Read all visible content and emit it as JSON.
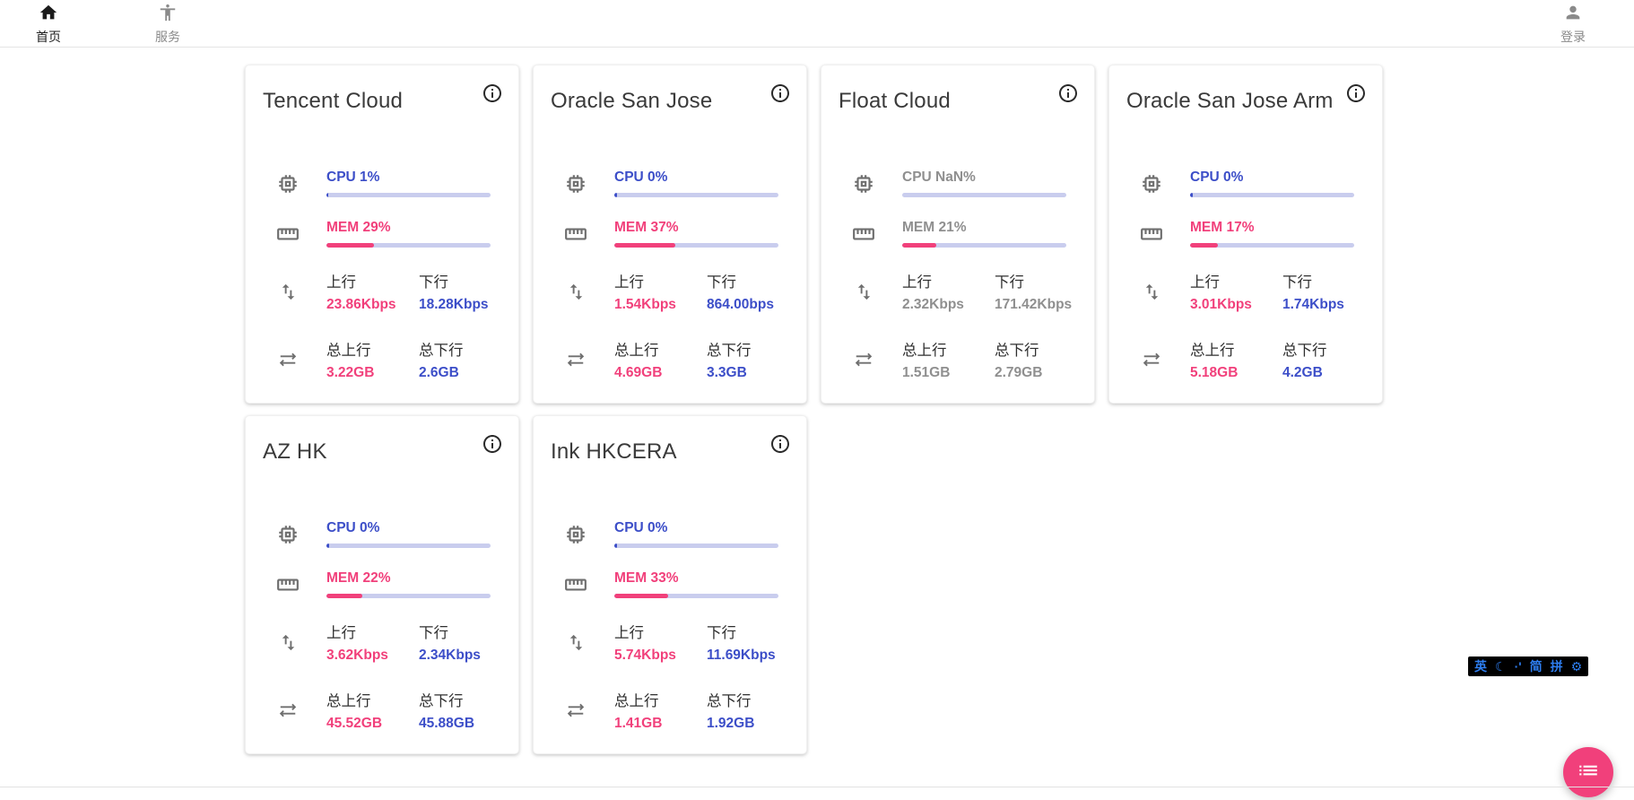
{
  "nav": {
    "home": {
      "label": "首页"
    },
    "services": {
      "label": "服务"
    },
    "login": {
      "label": "登录"
    }
  },
  "labels": {
    "cpu": "CPU",
    "mem": "MEM",
    "up": "上行",
    "down": "下行",
    "total_up": "总上行",
    "total_down": "总下行"
  },
  "colors": {
    "accent_pink": "#F1407B",
    "accent_blue": "#3C4EC8",
    "bar_track": "#C9CDEE",
    "offline_gray": "#8F8F8F"
  },
  "servers": [
    {
      "name": "Tencent Cloud",
      "cpu_text": "1%",
      "cpu_pct": 1,
      "mem_text": "29%",
      "mem_pct": 29,
      "up": "23.86Kbps",
      "down": "18.28Kbps",
      "total_up": "3.22GB",
      "total_down": "2.6GB",
      "online": true
    },
    {
      "name": "Oracle San Jose",
      "cpu_text": "0%",
      "cpu_pct": 0,
      "mem_text": "37%",
      "mem_pct": 37,
      "up": "1.54Kbps",
      "down": "864.00bps",
      "total_up": "4.69GB",
      "total_down": "3.3GB",
      "online": true
    },
    {
      "name": "Float Cloud",
      "cpu_text": "NaN%",
      "cpu_pct": 0,
      "mem_text": "21%",
      "mem_pct": 21,
      "up": "2.32Kbps",
      "down": "171.42Kbps",
      "total_up": "1.51GB",
      "total_down": "2.79GB",
      "online": false
    },
    {
      "name": "Oracle San Jose Arm",
      "cpu_text": "0%",
      "cpu_pct": 0,
      "mem_text": "17%",
      "mem_pct": 17,
      "up": "3.01Kbps",
      "down": "1.74Kbps",
      "total_up": "5.18GB",
      "total_down": "4.2GB",
      "online": true
    },
    {
      "name": "AZ HK",
      "cpu_text": "0%",
      "cpu_pct": 0,
      "mem_text": "22%",
      "mem_pct": 22,
      "up": "3.62Kbps",
      "down": "2.34Kbps",
      "total_up": "45.52GB",
      "total_down": "45.88GB",
      "online": true
    },
    {
      "name": "Ink HKCERA",
      "cpu_text": "0%",
      "cpu_pct": 0,
      "mem_text": "33%",
      "mem_pct": 33,
      "up": "5.74Kbps",
      "down": "11.69Kbps",
      "total_up": "1.41GB",
      "total_down": "1.92GB",
      "online": true
    }
  ],
  "ime_bar": {
    "items": [
      {
        "name": "ime-english",
        "glyph": "英"
      },
      {
        "name": "ime-dark-mode",
        "glyph": "☾"
      },
      {
        "name": "ime-punctuation",
        "glyph": "·'"
      },
      {
        "name": "ime-simplified",
        "glyph": "简"
      },
      {
        "name": "ime-pinyin",
        "glyph": "拼"
      },
      {
        "name": "ime-settings",
        "glyph": "⚙"
      }
    ]
  },
  "fab": {
    "icon": "list-icon"
  }
}
